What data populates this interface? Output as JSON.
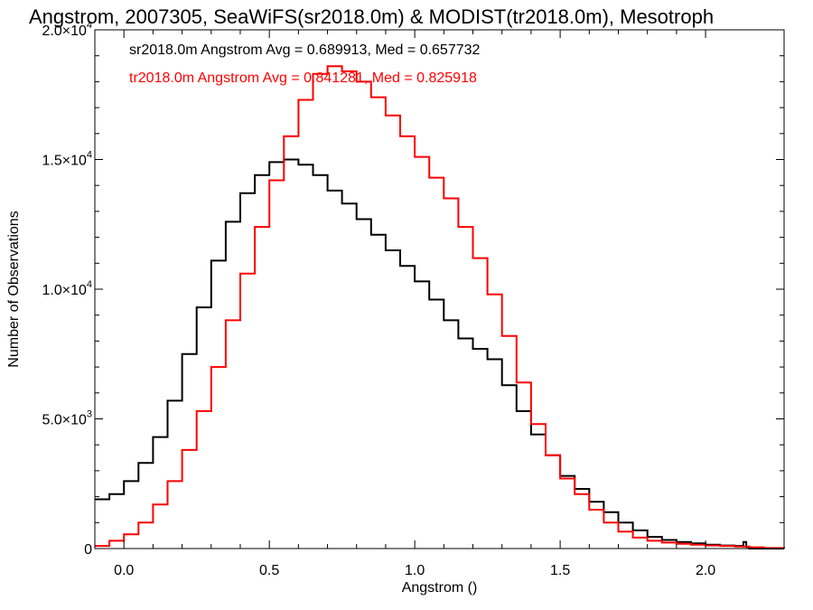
{
  "chart_data": {
    "type": "line",
    "title": "Angstrom, 2007305, SeaWiFS(sr2018.0m) & MODIST(tr2018.0m), Mesotroph",
    "xlabel": "Angstrom ()",
    "ylabel": "Number of Observations",
    "xlim": [
      -0.1,
      2.27
    ],
    "ylim": [
      0,
      20000
    ],
    "grid": false,
    "x_ticks": [
      0.0,
      0.5,
      1.0,
      1.5,
      2.0
    ],
    "x_tick_labels": [
      "0.0",
      "0.5",
      "1.0",
      "1.5",
      "2.0"
    ],
    "y_ticks": [
      0,
      5000,
      10000,
      15000,
      20000
    ],
    "y_tick_labels": [
      {
        "mantissa": "0",
        "exponent": ""
      },
      {
        "mantissa": "5.0×10",
        "exponent": "3"
      },
      {
        "mantissa": "1.0×10",
        "exponent": "4"
      },
      {
        "mantissa": "1.5×10",
        "exponent": "4"
      },
      {
        "mantissa": "2.0×10",
        "exponent": "4"
      }
    ],
    "annotations": [
      {
        "text": "sr2018.0m Angstrom Avg = 0.689913, Med = 0.657732",
        "color": "#000000"
      },
      {
        "text": "tr2018.0m Angstrom Avg = 0.841281, Med = 0.825918",
        "color": "#ff0000"
      }
    ],
    "series": [
      {
        "color": "#000000",
        "x": [
          -0.1,
          -0.05,
          0.0,
          0.05,
          0.1,
          0.15,
          0.2,
          0.25,
          0.3,
          0.35,
          0.4,
          0.45,
          0.5,
          0.55,
          0.6,
          0.65,
          0.7,
          0.75,
          0.8,
          0.85,
          0.9,
          0.95,
          1.0,
          1.05,
          1.1,
          1.15,
          1.2,
          1.25,
          1.3,
          1.35,
          1.4,
          1.45,
          1.5,
          1.55,
          1.6,
          1.65,
          1.7,
          1.75,
          1.8,
          1.85,
          1.9,
          1.95,
          2.0,
          2.05,
          2.1,
          2.13,
          2.14,
          2.15,
          2.2,
          2.27
        ],
        "y": [
          1900,
          2100,
          2600,
          3300,
          4300,
          5700,
          7500,
          9300,
          11100,
          12600,
          13700,
          14400,
          14900,
          15000,
          14800,
          14400,
          13800,
          13300,
          12700,
          12100,
          11500,
          10900,
          10300,
          9600,
          8800,
          8100,
          7700,
          7300,
          6300,
          5300,
          4400,
          3600,
          2800,
          2300,
          1800,
          1400,
          1000,
          700,
          450,
          330,
          250,
          200,
          150,
          120,
          100,
          250,
          60,
          0,
          0,
          0
        ]
      },
      {
        "color": "#ff0000",
        "x": [
          -0.1,
          -0.05,
          0.0,
          0.05,
          0.1,
          0.15,
          0.2,
          0.25,
          0.3,
          0.35,
          0.4,
          0.45,
          0.5,
          0.55,
          0.6,
          0.65,
          0.7,
          0.75,
          0.8,
          0.85,
          0.9,
          0.95,
          1.0,
          1.05,
          1.1,
          1.15,
          1.2,
          1.25,
          1.3,
          1.35,
          1.4,
          1.45,
          1.5,
          1.55,
          1.6,
          1.65,
          1.7,
          1.75,
          1.8,
          1.85,
          1.9,
          1.95,
          2.0,
          2.05,
          2.1,
          2.15,
          2.2,
          2.27
        ],
        "y": [
          100,
          300,
          550,
          1000,
          1700,
          2600,
          3800,
          5300,
          7000,
          8800,
          10600,
          12400,
          14200,
          15900,
          17300,
          18300,
          18600,
          18400,
          18000,
          17400,
          16700,
          15900,
          15100,
          14300,
          13500,
          12400,
          11200,
          9800,
          8200,
          6400,
          4800,
          3600,
          2700,
          2100,
          1500,
          1000,
          650,
          420,
          300,
          230,
          180,
          150,
          120,
          100,
          80,
          50,
          20,
          0
        ]
      }
    ]
  }
}
